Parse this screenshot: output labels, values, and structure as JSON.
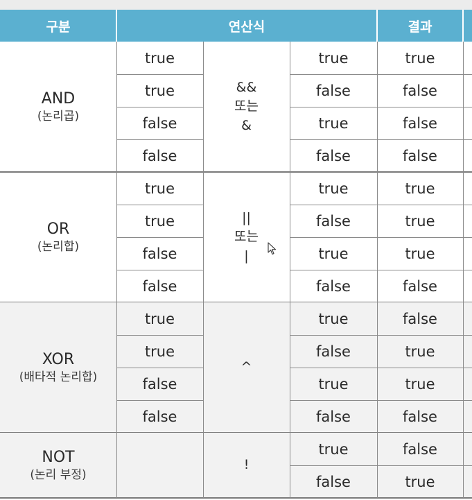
{
  "header": {
    "category": "구분",
    "operation": "연산식",
    "result": "결과"
  },
  "groups": [
    {
      "id": "and",
      "name": "AND",
      "korean": "(논리곱)",
      "operator_lines": [
        "&&",
        "또는",
        "&"
      ],
      "rows": [
        {
          "a": "true",
          "b": "true",
          "result": "true"
        },
        {
          "a": "true",
          "b": "false",
          "result": "false"
        },
        {
          "a": "false",
          "b": "true",
          "result": "false"
        },
        {
          "a": "false",
          "b": "false",
          "result": "false"
        }
      ]
    },
    {
      "id": "or",
      "name": "OR",
      "korean": "(논리합)",
      "operator_lines": [
        "||",
        "또는",
        "|"
      ],
      "rows": [
        {
          "a": "true",
          "b": "true",
          "result": "true"
        },
        {
          "a": "true",
          "b": "false",
          "result": "true"
        },
        {
          "a": "false",
          "b": "true",
          "result": "true"
        },
        {
          "a": "false",
          "b": "false",
          "result": "false"
        }
      ]
    },
    {
      "id": "xor",
      "name": "XOR",
      "korean": "(배타적 논리합)",
      "operator_lines": [
        "^"
      ],
      "rows": [
        {
          "a": "true",
          "b": "true",
          "result": "false"
        },
        {
          "a": "true",
          "b": "false",
          "result": "true"
        },
        {
          "a": "false",
          "b": "true",
          "result": "true"
        },
        {
          "a": "false",
          "b": "false",
          "result": "false"
        }
      ]
    },
    {
      "id": "not",
      "name": "NOT",
      "korean": "(논리 부정)",
      "operator_lines": [
        "!"
      ],
      "rows": [
        {
          "a": "",
          "b": "true",
          "result": "false"
        },
        {
          "a": "",
          "b": "false",
          "result": "true"
        }
      ]
    }
  ],
  "colors": {
    "header_bg": "#5bb0d0",
    "header_text": "#ffffff",
    "gray_section_bg": "#f2f2f2",
    "grid": "#8a8a8a"
  },
  "icons": {
    "cursor": "mouse-pointer-icon"
  }
}
